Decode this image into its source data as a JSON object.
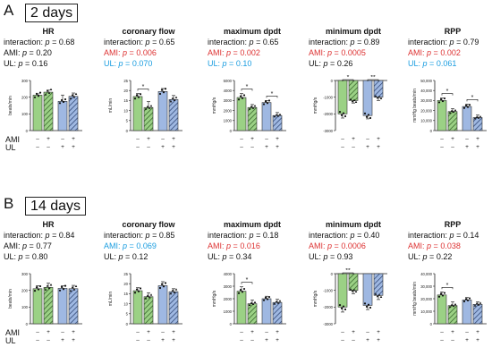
{
  "figure": {
    "colors": {
      "green": "#9bd185",
      "blue": "#9fb8e2",
      "significant": "#d33333",
      "trend": "#1a9de0"
    },
    "pattern": "diagonal-hatch-on-AMI-bars",
    "row_labels": {
      "ami": "AMI",
      "ul": "UL"
    },
    "panels": [
      {
        "letter": "A",
        "label": "2 days",
        "charts": [
          {
            "title": "HR",
            "stats": [
              {
                "name": "interaction",
                "p": "0.68",
                "color": "black"
              },
              {
                "name": "AMI",
                "p": "0.20",
                "color": "black"
              },
              {
                "name": "UL",
                "p": "0.16",
                "color": "black"
              }
            ],
            "ylabel": "beats/min",
            "ticks": [
              "0",
              "100",
              "200",
              "300"
            ],
            "ylim": [
              0,
              300
            ],
            "orientation": "up",
            "bars": [
              212,
              230,
              175,
              205
            ],
            "errors": [
              8,
              12,
              38,
              20
            ],
            "sig": []
          },
          {
            "title": "coronary flow",
            "stats": [
              {
                "name": "interaction",
                "p": "0.65",
                "color": "black"
              },
              {
                "name": "AMI",
                "p": "0.006",
                "color": "red"
              },
              {
                "name": "UL",
                "p": "0.070",
                "color": "blue"
              }
            ],
            "ylabel": "mL/min",
            "ticks": [
              "0",
              "5",
              "10",
              "15",
              "20",
              "25"
            ],
            "ylim": [
              0,
              25
            ],
            "orientation": "up",
            "bars": [
              17,
              11.5,
              19.5,
              15.5
            ],
            "errors": [
              1.5,
              3,
              1.5,
              2
            ],
            "sig": [
              "*",
              ""
            ]
          },
          {
            "title": "maximum dpdt",
            "stats": [
              {
                "name": "interaction",
                "p": "0.65",
                "color": "black"
              },
              {
                "name": "AMI",
                "p": "0.002",
                "color": "red"
              },
              {
                "name": "UL",
                "p": "0.10",
                "color": "blue"
              }
            ],
            "ylabel": "mmHg/s",
            "ticks": [
              "0",
              "1000",
              "2000",
              "3000",
              "4000",
              "5000"
            ],
            "ylim": [
              0,
              5000
            ],
            "orientation": "up",
            "bars": [
              3300,
              2300,
              2800,
              1500
            ],
            "errors": [
              400,
              300,
              200,
              300
            ],
            "sig": [
              "*",
              "*"
            ]
          },
          {
            "title": "minimum dpdt",
            "stats": [
              {
                "name": "interaction",
                "p": "0.89",
                "color": "black"
              },
              {
                "name": "AMI",
                "p": "0.0005",
                "color": "red"
              },
              {
                "name": "UL",
                "p": "0.26",
                "color": "black"
              }
            ],
            "ylabel": "mmHg/s",
            "ticks": [
              "0",
              "-1000",
              "-2000",
              "-3000"
            ],
            "ylim": [
              -3000,
              0
            ],
            "orientation": "down",
            "bars": [
              -2000,
              -1200,
              -2100,
              -1000
            ],
            "errors": [
              250,
              150,
              200,
              200
            ],
            "sig": [
              "*",
              "**"
            ]
          },
          {
            "title": "RPP",
            "stats": [
              {
                "name": "interaction",
                "p": "0.79",
                "color": "black"
              },
              {
                "name": "AMI",
                "p": "0.002",
                "color": "red"
              },
              {
                "name": "UL",
                "p": "0.061",
                "color": "blue"
              }
            ],
            "ylabel": "mmHg beats/min",
            "ticks": [
              "0",
              "10,000",
              "20,000",
              "30,000",
              "40,000",
              "50,000"
            ],
            "ylim": [
              0,
              50000
            ],
            "orientation": "up",
            "bars": [
              30000,
              19000,
              24000,
              13000
            ],
            "errors": [
              2500,
              3000,
              2500,
              2500
            ],
            "sig": [
              "*",
              "*"
            ]
          }
        ]
      },
      {
        "letter": "B",
        "label": "14 days",
        "charts": [
          {
            "title": "HR",
            "stats": [
              {
                "name": "interaction",
                "p": "0.84",
                "color": "black"
              },
              {
                "name": "AMI",
                "p": "0.77",
                "color": "black"
              },
              {
                "name": "UL",
                "p": "0.80",
                "color": "black"
              }
            ],
            "ylabel": "beats/min",
            "ticks": [
              "0",
              "100",
              "200",
              "300"
            ],
            "ylim": [
              0,
              300
            ],
            "orientation": "up",
            "bars": [
              210,
              218,
              212,
              210
            ],
            "errors": [
              18,
              25,
              15,
              20
            ],
            "sig": []
          },
          {
            "title": "coronary flow",
            "stats": [
              {
                "name": "interaction",
                "p": "0.85",
                "color": "black"
              },
              {
                "name": "AMI",
                "p": "0.069",
                "color": "blue"
              },
              {
                "name": "UL",
                "p": "0.12",
                "color": "black"
              }
            ],
            "ylabel": "mL/min",
            "ticks": [
              "0",
              "5",
              "10",
              "15",
              "20",
              "25"
            ],
            "ylim": [
              0,
              25
            ],
            "orientation": "up",
            "bars": [
              16.5,
              13.5,
              19,
              16
            ],
            "errors": [
              1.5,
              2,
              2,
              1.5
            ],
            "sig": []
          },
          {
            "title": "maximum dpdt",
            "stats": [
              {
                "name": "interaction",
                "p": "0.18",
                "color": "black"
              },
              {
                "name": "AMI",
                "p": "0.016",
                "color": "red"
              },
              {
                "name": "UL",
                "p": "0.34",
                "color": "black"
              }
            ],
            "ylabel": "mmHg/s",
            "ticks": [
              "0",
              "1000",
              "2000",
              "3000",
              "4000"
            ],
            "ylim": [
              0,
              4000
            ],
            "orientation": "up",
            "bars": [
              2600,
              1600,
              2000,
              1700
            ],
            "errors": [
              350,
              300,
              200,
              250
            ],
            "sig": [
              "*",
              ""
            ]
          },
          {
            "title": "minimum dpdt",
            "stats": [
              {
                "name": "interaction",
                "p": "0.40",
                "color": "black"
              },
              {
                "name": "AMI",
                "p": "0.0006",
                "color": "red"
              },
              {
                "name": "UL",
                "p": "0.93",
                "color": "black"
              }
            ],
            "ylabel": "mmHg/s",
            "ticks": [
              "0",
              "-1000",
              "-2000",
              "-3000"
            ],
            "ylim": [
              -3000,
              0
            ],
            "orientation": "down",
            "bars": [
              -2000,
              -1000,
              -1900,
              -1300
            ],
            "errors": [
              300,
              200,
              250,
              250
            ],
            "sig": [
              "**",
              ""
            ]
          },
          {
            "title": "RPP",
            "stats": [
              {
                "name": "interaction",
                "p": "0.14",
                "color": "black"
              },
              {
                "name": "AMI",
                "p": "0.038",
                "color": "red"
              },
              {
                "name": "UL",
                "p": "0.22",
                "color": "black"
              }
            ],
            "ylabel": "mmHg beats/min",
            "ticks": [
              "0",
              "10,000",
              "20,000",
              "30,000",
              "40,000"
            ],
            "ylim": [
              0,
              40000
            ],
            "orientation": "up",
            "bars": [
              23000,
              14500,
              19000,
              15500
            ],
            "errors": [
              2500,
              3000,
              2000,
              2000
            ],
            "sig": [
              "*",
              ""
            ]
          }
        ]
      }
    ],
    "groups": [
      {
        "ami": "–",
        "ul": "–"
      },
      {
        "ami": "+",
        "ul": "–"
      },
      {
        "ami": "–",
        "ul": "+"
      },
      {
        "ami": "+",
        "ul": "+"
      }
    ]
  },
  "chart_data": [
    {
      "type": "bar",
      "title": "HR",
      "ylabel": "beats/min",
      "ylim": [
        0,
        300
      ],
      "categories": [
        "AMI- UL-",
        "AMI+ UL-",
        "AMI- UL+",
        "AMI+ UL+"
      ],
      "values": [
        212,
        230,
        175,
        205
      ]
    },
    {
      "type": "bar",
      "title": "coronary flow",
      "ylabel": "mL/min",
      "ylim": [
        0,
        25
      ],
      "categories": [
        "AMI- UL-",
        "AMI+ UL-",
        "AMI- UL+",
        "AMI+ UL+"
      ],
      "values": [
        17,
        11.5,
        19.5,
        15.5
      ]
    },
    {
      "type": "bar",
      "title": "maximum dpdt",
      "ylabel": "mmHg/s",
      "ylim": [
        0,
        5000
      ],
      "categories": [
        "AMI- UL-",
        "AMI+ UL-",
        "AMI- UL+",
        "AMI+ UL+"
      ],
      "values": [
        3300,
        2300,
        2800,
        1500
      ]
    },
    {
      "type": "bar",
      "title": "minimum dpdt",
      "ylabel": "mmHg/s",
      "ylim": [
        -3000,
        0
      ],
      "categories": [
        "AMI- UL-",
        "AMI+ UL-",
        "AMI- UL+",
        "AMI+ UL+"
      ],
      "values": [
        -2000,
        -1200,
        -2100,
        -1000
      ]
    },
    {
      "type": "bar",
      "title": "RPP",
      "ylabel": "mmHg beats/min",
      "ylim": [
        0,
        50000
      ],
      "categories": [
        "AMI- UL-",
        "AMI+ UL-",
        "AMI- UL+",
        "AMI+ UL+"
      ],
      "values": [
        30000,
        19000,
        24000,
        13000
      ]
    },
    {
      "type": "bar",
      "title": "HR",
      "ylabel": "beats/min",
      "ylim": [
        0,
        300
      ],
      "categories": [
        "AMI- UL-",
        "AMI+ UL-",
        "AMI- UL+",
        "AMI+ UL+"
      ],
      "values": [
        210,
        218,
        212,
        210
      ]
    },
    {
      "type": "bar",
      "title": "coronary flow",
      "ylabel": "mL/min",
      "ylim": [
        0,
        25
      ],
      "categories": [
        "AMI- UL-",
        "AMI+ UL-",
        "AMI- UL+",
        "AMI+ UL+"
      ],
      "values": [
        16.5,
        13.5,
        19,
        16
      ]
    },
    {
      "type": "bar",
      "title": "maximum dpdt",
      "ylabel": "mmHg/s",
      "ylim": [
        0,
        4000
      ],
      "categories": [
        "AMI- UL-",
        "AMI+ UL-",
        "AMI- UL+",
        "AMI+ UL+"
      ],
      "values": [
        2600,
        1600,
        2000,
        1700
      ]
    },
    {
      "type": "bar",
      "title": "minimum dpdt",
      "ylabel": "mmHg/s",
      "ylim": [
        -3000,
        0
      ],
      "categories": [
        "AMI- UL-",
        "AMI+ UL-",
        "AMI- UL+",
        "AMI+ UL+"
      ],
      "values": [
        -2000,
        -1000,
        -1900,
        -1300
      ]
    },
    {
      "type": "bar",
      "title": "RPP",
      "ylabel": "mmHg beats/min",
      "ylim": [
        0,
        40000
      ],
      "categories": [
        "AMI- UL-",
        "AMI+ UL-",
        "AMI- UL+",
        "AMI+ UL+"
      ],
      "values": [
        23000,
        14500,
        19000,
        15500
      ]
    }
  ]
}
